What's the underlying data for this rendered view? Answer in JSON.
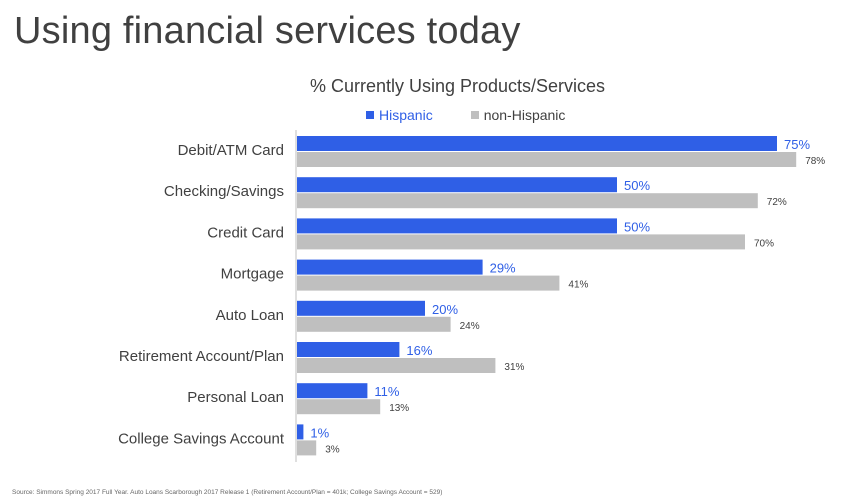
{
  "slide": {
    "title": "Using financial services today",
    "source": "Source: Simmons Spring 2017 Full Year.  Auto Loans Scarborough 2017 Release 1 (Retirement Account/Plan = 401k; College Savings Account = 529)"
  },
  "colors": {
    "hispanic": "#2f5fe6",
    "non_hispanic": "#bfbfbf",
    "axis": "#bfbfbf"
  },
  "chart_data": {
    "type": "bar",
    "orientation": "horizontal",
    "title": "% Currently Using Products/Services",
    "categories": [
      "Debit/ATM Card",
      "Checking/Savings",
      "Credit Card",
      "Mortgage",
      "Auto Loan",
      "Retirement Account/Plan",
      "Personal Loan",
      "College Savings Account"
    ],
    "series": [
      {
        "name": "Hispanic",
        "values": [
          75,
          50,
          50,
          29,
          20,
          16,
          11,
          1
        ],
        "labels": [
          "75%",
          "50%",
          "50%",
          "29%",
          "20%",
          "16%",
          "11%",
          "1%"
        ]
      },
      {
        "name": "non-Hispanic",
        "values": [
          78,
          72,
          70,
          41,
          24,
          31,
          13,
          3
        ],
        "labels": [
          "78%",
          "72%",
          "70%",
          "41%",
          "24%",
          "31%",
          "13%",
          "3%"
        ]
      }
    ],
    "xlim": [
      0,
      100
    ],
    "grid": false,
    "legend": "top-center"
  }
}
